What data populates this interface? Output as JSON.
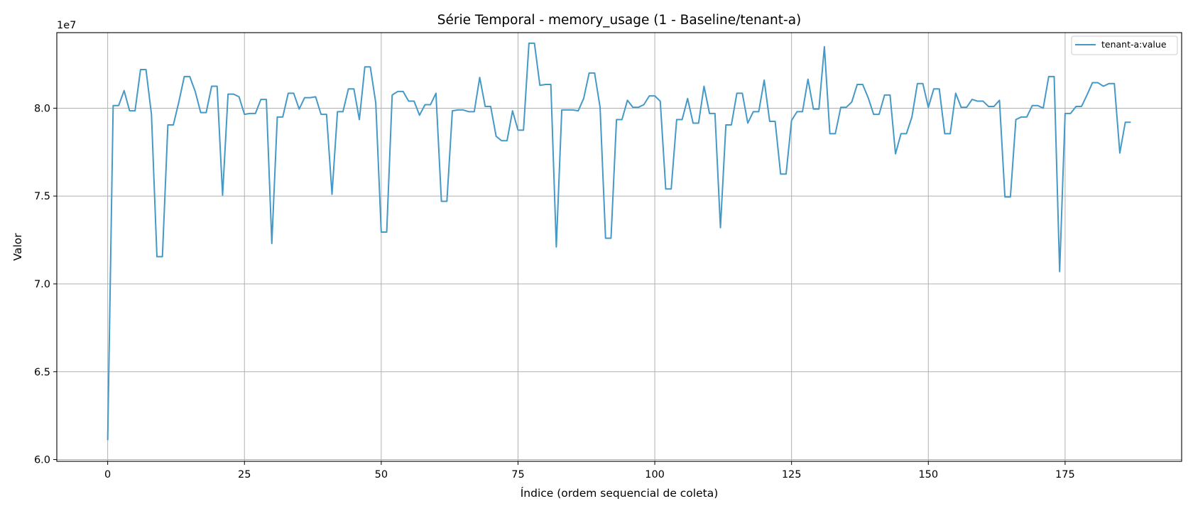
{
  "chart_data": {
    "type": "line",
    "title": "Série Temporal - memory_usage (1 - Baseline/tenant-a)",
    "xlabel": "Índice (ordem sequencial de coleta)",
    "ylabel": "Valor",
    "y_offset_text": "1e7",
    "y_scale_multiplier": 10000000,
    "xlim": [
      -9.3,
      196.3
    ],
    "ylim": [
      59900000,
      84300000
    ],
    "x_ticks": [
      0,
      25,
      50,
      75,
      100,
      125,
      150,
      175
    ],
    "x_tick_labels": [
      "0",
      "25",
      "50",
      "75",
      "100",
      "125",
      "150",
      "175"
    ],
    "y_ticks": [
      60000000,
      65000000,
      70000000,
      75000000,
      80000000
    ],
    "y_tick_labels": [
      "6.0",
      "6.5",
      "7.0",
      "7.5",
      "8.0"
    ],
    "grid": true,
    "legend_position": "top-right",
    "series": [
      {
        "name": "tenant-a:value",
        "color": "#4599c7",
        "x": [
          0,
          1,
          2,
          3,
          4,
          5,
          6,
          7,
          8,
          9,
          10,
          11,
          12,
          13,
          14,
          15,
          16,
          17,
          18,
          19,
          20,
          21,
          22,
          23,
          24,
          25,
          26,
          27,
          28,
          29,
          30,
          31,
          32,
          33,
          34,
          35,
          36,
          37,
          38,
          39,
          40,
          41,
          42,
          43,
          44,
          45,
          46,
          47,
          48,
          49,
          50,
          51,
          52,
          53,
          54,
          55,
          56,
          57,
          58,
          59,
          60,
          61,
          62,
          63,
          64,
          65,
          66,
          67,
          68,
          69,
          70,
          71,
          72,
          73,
          74,
          75,
          76,
          77,
          78,
          79,
          80,
          81,
          82,
          83,
          84,
          85,
          86,
          87,
          88,
          89,
          90,
          91,
          92,
          93,
          94,
          95,
          96,
          97,
          98,
          99,
          100,
          101,
          102,
          103,
          104,
          105,
          106,
          107,
          108,
          109,
          110,
          111,
          112,
          113,
          114,
          115,
          116,
          117,
          118,
          119,
          120,
          121,
          122,
          123,
          124,
          125,
          126,
          127,
          128,
          129,
          130,
          131,
          132,
          133,
          134,
          135,
          136,
          137,
          138,
          139,
          140,
          141,
          142,
          143,
          144,
          145,
          146,
          147,
          148,
          149,
          150,
          151,
          152,
          153,
          154,
          155,
          156,
          157,
          158,
          159,
          160,
          161,
          162,
          163,
          164,
          165,
          166,
          167,
          168,
          169,
          170,
          171,
          172,
          173,
          174,
          175,
          176,
          177,
          178,
          179,
          180,
          181,
          182,
          183,
          184,
          185,
          186,
          187
        ],
        "values": [
          61100000,
          80150000,
          80150000,
          81000000,
          79850000,
          79850000,
          82200000,
          82200000,
          79650000,
          71550000,
          71550000,
          79050000,
          79050000,
          80350000,
          81800000,
          81800000,
          80950000,
          79750000,
          79750000,
          81250000,
          81250000,
          75050000,
          80800000,
          80800000,
          80650000,
          79650000,
          79700000,
          79700000,
          80500000,
          80500000,
          72300000,
          79500000,
          79500000,
          80850000,
          80850000,
          79950000,
          80600000,
          80600000,
          80650000,
          79650000,
          79650000,
          75100000,
          79800000,
          79800000,
          81100000,
          81100000,
          79350000,
          82350000,
          82350000,
          80300000,
          72950000,
          72950000,
          80750000,
          80950000,
          80950000,
          80400000,
          80400000,
          79600000,
          80200000,
          80200000,
          80850000,
          74700000,
          74700000,
          79850000,
          79900000,
          79900000,
          79800000,
          79800000,
          81750000,
          80100000,
          80100000,
          78400000,
          78150000,
          78150000,
          79850000,
          78750000,
          78750000,
          83700000,
          83700000,
          81300000,
          81350000,
          81350000,
          72100000,
          79900000,
          79900000,
          79900000,
          79850000,
          80550000,
          82000000,
          82000000,
          80050000,
          72600000,
          72600000,
          79350000,
          79350000,
          80450000,
          80050000,
          80050000,
          80200000,
          80700000,
          80700000,
          80400000,
          75400000,
          75400000,
          79350000,
          79350000,
          80550000,
          79150000,
          79150000,
          81250000,
          79700000,
          79700000,
          73200000,
          79050000,
          79050000,
          80850000,
          80850000,
          79150000,
          79800000,
          79800000,
          81600000,
          79250000,
          79250000,
          76250000,
          76250000,
          79300000,
          79800000,
          79800000,
          81650000,
          79950000,
          79950000,
          83500000,
          78550000,
          78550000,
          80050000,
          80050000,
          80350000,
          81350000,
          81350000,
          80600000,
          79650000,
          79650000,
          80750000,
          80750000,
          77400000,
          78550000,
          78550000,
          79500000,
          81400000,
          81400000,
          80050000,
          81100000,
          81100000,
          78550000,
          78550000,
          80850000,
          80050000,
          80050000,
          80500000,
          80400000,
          80400000,
          80100000,
          80100000,
          80450000,
          74950000,
          74950000,
          79350000,
          79500000,
          79500000,
          80150000,
          80150000,
          80000000,
          81800000,
          81800000,
          70700000,
          79700000,
          79700000,
          80100000,
          80100000,
          80750000,
          81450000,
          81450000,
          81250000,
          81400000,
          81400000,
          77450000,
          79200000,
          79200000
        ]
      }
    ]
  }
}
